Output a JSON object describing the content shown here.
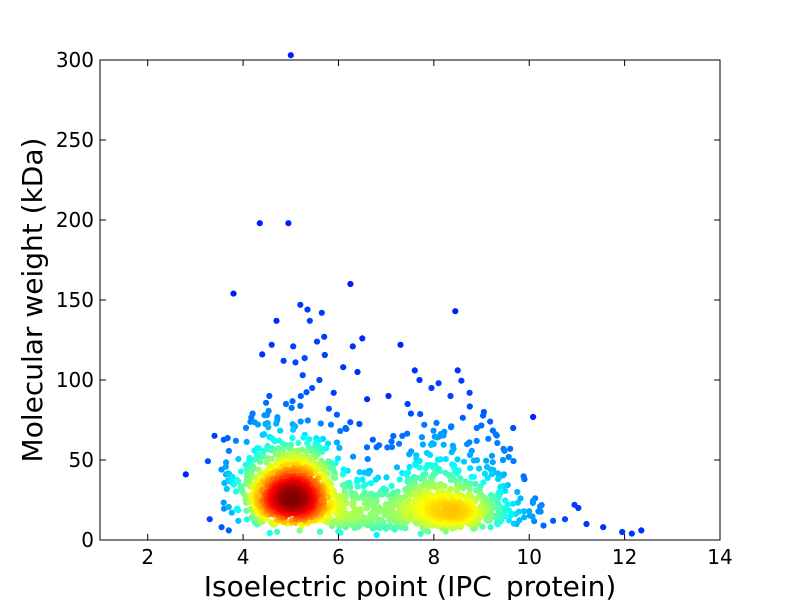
{
  "chart_data": {
    "type": "scatter",
    "title": "",
    "xlabel": "Isoelectric point (IPC_protein)",
    "ylabel": "Molecular weight (kDa)",
    "xlim": [
      1,
      14
    ],
    "ylim": [
      0,
      300
    ],
    "xticks": [
      "2",
      "4",
      "6",
      "8",
      "10",
      "12",
      "14"
    ],
    "yticks": [
      "0",
      "50",
      "100",
      "150",
      "200",
      "250",
      "300"
    ],
    "grid": false,
    "legend": "none",
    "colormap": "jet (point density)",
    "points": [
      [
        2.8,
        41
      ],
      [
        3.8,
        154
      ],
      [
        4.35,
        198
      ],
      [
        4.95,
        198
      ],
      [
        6.25,
        160
      ],
      [
        8.45,
        143
      ],
      [
        5.0,
        303
      ],
      [
        5.2,
        147
      ],
      [
        5.35,
        144
      ],
      [
        5.4,
        137
      ],
      [
        4.7,
        137
      ],
      [
        5.65,
        142
      ],
      [
        5.7,
        127
      ],
      [
        6.5,
        126
      ],
      [
        7.3,
        122
      ],
      [
        6.3,
        121
      ],
      [
        5.55,
        124
      ],
      [
        5.05,
        121
      ],
      [
        4.6,
        122
      ],
      [
        4.4,
        116
      ],
      [
        4.85,
        112
      ],
      [
        5.1,
        111
      ],
      [
        6.1,
        108
      ],
      [
        7.6,
        106
      ],
      [
        8.5,
        106
      ],
      [
        6.4,
        105
      ],
      [
        5.25,
        103
      ],
      [
        5.6,
        100
      ],
      [
        7.7,
        100
      ],
      [
        8.1,
        98
      ],
      [
        3.85,
        62
      ],
      [
        4.2,
        79
      ],
      [
        4.55,
        90
      ],
      [
        5.9,
        92
      ],
      [
        6.6,
        88
      ],
      [
        7.05,
        90
      ],
      [
        7.45,
        85
      ],
      [
        7.95,
        95
      ],
      [
        8.35,
        90
      ],
      [
        8.75,
        92
      ],
      [
        9.05,
        80
      ],
      [
        9.3,
        66
      ],
      [
        9.6,
        57
      ],
      [
        9.45,
        50
      ],
      [
        9.9,
        38
      ],
      [
        10.0,
        18
      ],
      [
        10.5,
        12
      ],
      [
        10.95,
        22
      ],
      [
        11.2,
        10
      ],
      [
        11.55,
        8
      ],
      [
        11.95,
        5
      ],
      [
        12.35,
        6
      ],
      [
        12.15,
        4
      ],
      [
        10.75,
        13
      ],
      [
        3.3,
        13
      ],
      [
        3.55,
        8
      ],
      [
        3.7,
        6
      ],
      [
        3.9,
        12
      ],
      [
        4.05,
        25
      ],
      [
        10.3,
        9
      ],
      [
        7.15,
        65
      ],
      [
        7.8,
        72
      ],
      [
        8.0,
        60
      ],
      [
        8.9,
        70
      ],
      [
        6.8,
        58
      ],
      [
        6.15,
        70
      ],
      [
        5.8,
        82
      ],
      [
        4.9,
        85
      ],
      [
        4.45,
        78
      ],
      [
        5.45,
        95
      ],
      [
        9.2,
        44
      ],
      [
        9.75,
        30
      ]
    ],
    "clusters": [
      {
        "x": 5.0,
        "y": 25,
        "sx": 0.45,
        "sy": 11,
        "n": 900,
        "peak": "red"
      },
      {
        "x": 5.0,
        "y": 45,
        "sx": 0.6,
        "sy": 18,
        "n": 300,
        "peak": "cyan"
      },
      {
        "x": 8.4,
        "y": 18,
        "sx": 0.7,
        "sy": 9,
        "n": 450,
        "peak": "cyan"
      },
      {
        "x": 7.2,
        "y": 20,
        "sx": 0.9,
        "sy": 12,
        "n": 250,
        "peak": "blue"
      },
      {
        "x": 8.2,
        "y": 45,
        "sx": 0.9,
        "sy": 18,
        "n": 140,
        "peak": "blue"
      },
      {
        "x": 6.3,
        "y": 15,
        "sx": 0.5,
        "sy": 8,
        "n": 120,
        "peak": "blue"
      }
    ]
  }
}
